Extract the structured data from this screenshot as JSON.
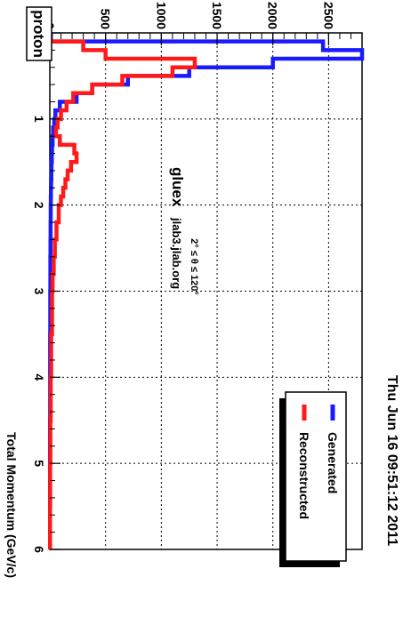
{
  "chart_data": {
    "type": "step",
    "title_box": "proton",
    "date_label": "Thu Jun 16 09:51:12 2011",
    "host_label": "gluex",
    "host_sub": "jlab3.jlab.org",
    "cut_label": "2° ≤ θ ≤ 120°",
    "xlabel": "Total Momentum (GeV/c)",
    "ylabel": "",
    "xlim": [
      0,
      6
    ],
    "ylim": [
      0,
      2800
    ],
    "x_ticks": [
      "0",
      "1",
      "2",
      "3",
      "4",
      "5",
      "6"
    ],
    "y_ticks": [
      "0",
      "500",
      "1000",
      "1500",
      "2000",
      "2500"
    ],
    "grid": true,
    "legend_position": "bottom-right",
    "series": [
      {
        "name": "Generated",
        "color": "#1a1aff",
        "edges": [
          0,
          0.1,
          0.2,
          0.3,
          0.4,
          0.5,
          0.6,
          0.7,
          0.8,
          0.9,
          1.0,
          1.1,
          1.2,
          1.3,
          1.4,
          1.5,
          1.6,
          1.7,
          1.8,
          1.9,
          2.0,
          2.2,
          2.4,
          2.6,
          2.8,
          3.0,
          3.5,
          4.0,
          4.5,
          5.0,
          5.5,
          6.0
        ],
        "values": [
          10,
          2450,
          2800,
          2000,
          1250,
          700,
          380,
          240,
          90,
          50,
          40,
          30,
          25,
          20,
          18,
          15,
          14,
          12,
          10,
          9,
          8,
          7,
          6,
          5,
          5,
          4,
          3,
          3,
          2,
          2,
          2
        ]
      },
      {
        "name": "Reconstructed",
        "color": "#ff1a1a",
        "edges": [
          0,
          0.1,
          0.2,
          0.3,
          0.4,
          0.5,
          0.6,
          0.7,
          0.8,
          0.9,
          1.0,
          1.1,
          1.2,
          1.3,
          1.4,
          1.5,
          1.6,
          1.7,
          1.8,
          1.9,
          2.0,
          2.2,
          2.4,
          2.6,
          2.8,
          3.0,
          3.5,
          4.0,
          4.5,
          5.0,
          5.5,
          6.0
        ],
        "values": [
          5,
          300,
          500,
          1300,
          1100,
          650,
          380,
          210,
          150,
          100,
          70,
          55,
          90,
          220,
          240,
          190,
          160,
          140,
          120,
          100,
          80,
          60,
          45,
          35,
          25,
          20,
          12,
          8,
          5,
          3,
          2
        ]
      }
    ]
  }
}
